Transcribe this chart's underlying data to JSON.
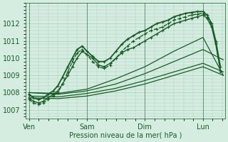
{
  "title": "",
  "xlabel": "Pression niveau de la mer( hPa )",
  "ylabel": "",
  "bg_color": "#d4ede0",
  "plot_bg_color": "#d4ede0",
  "grid_color": "#aacfbc",
  "line_color": "#1a5c28",
  "tick_color": "#1a5c28",
  "label_color": "#1a5c28",
  "ylim": [
    1006.5,
    1013.2
  ],
  "yticks": [
    1007,
    1008,
    1009,
    1010,
    1011,
    1012
  ],
  "x_labels": [
    "Ven",
    "Sam",
    "Dim",
    "Lun"
  ],
  "x_positions": [
    0,
    1,
    2,
    3
  ],
  "lines": [
    {
      "x": [
        0.0,
        0.5,
        1.0,
        1.5,
        2.0,
        2.5,
        3.0,
        3.35
      ],
      "y": [
        1007.7,
        1007.65,
        1007.8,
        1008.1,
        1008.5,
        1009.0,
        1009.5,
        1009.0
      ],
      "style": "-",
      "marker": null,
      "lw": 0.9,
      "ms": 0
    },
    {
      "x": [
        0.0,
        0.5,
        1.0,
        1.5,
        2.0,
        2.5,
        3.0,
        3.35
      ],
      "y": [
        1007.8,
        1007.75,
        1007.95,
        1008.25,
        1008.7,
        1009.2,
        1009.7,
        1009.2
      ],
      "style": "-",
      "marker": null,
      "lw": 0.9,
      "ms": 0
    },
    {
      "x": [
        0.0,
        0.5,
        1.0,
        1.5,
        2.0,
        2.5,
        3.0,
        3.35
      ],
      "y": [
        1008.0,
        1007.9,
        1008.1,
        1008.5,
        1009.1,
        1009.8,
        1010.5,
        1009.9
      ],
      "style": "-",
      "marker": null,
      "lw": 0.9,
      "ms": 0
    },
    {
      "x": [
        0.0,
        0.5,
        1.0,
        1.5,
        2.0,
        2.5,
        3.0,
        3.35
      ],
      "y": [
        1008.0,
        1007.95,
        1008.2,
        1008.8,
        1009.5,
        1010.4,
        1011.2,
        1009.0
      ],
      "style": "-",
      "marker": null,
      "lw": 0.9,
      "ms": 0
    },
    {
      "x": [
        0.0,
        0.08,
        0.17,
        0.25,
        0.33,
        0.42,
        0.5,
        0.58,
        0.67,
        0.75,
        0.83,
        0.92,
        1.0,
        1.1,
        1.2,
        1.3,
        1.4,
        1.5,
        1.6,
        1.7,
        1.8,
        1.9,
        2.0,
        2.1,
        2.2,
        2.3,
        2.4,
        2.5,
        2.6,
        2.7,
        2.8,
        2.9,
        3.0,
        3.07,
        3.15,
        3.22,
        3.3
      ],
      "y": [
        1007.7,
        1007.5,
        1007.4,
        1007.5,
        1007.7,
        1007.9,
        1008.1,
        1008.5,
        1009.0,
        1009.5,
        1010.0,
        1010.4,
        1010.2,
        1010.0,
        1009.6,
        1009.5,
        1009.7,
        1010.0,
        1010.3,
        1010.5,
        1010.6,
        1010.8,
        1011.0,
        1011.2,
        1011.4,
        1011.6,
        1011.8,
        1012.0,
        1012.1,
        1012.2,
        1012.3,
        1012.4,
        1012.5,
        1012.3,
        1011.8,
        1010.8,
        1009.3
      ],
      "style": "-",
      "marker": "+",
      "lw": 1.0,
      "ms": 3.5
    },
    {
      "x": [
        0.0,
        0.08,
        0.17,
        0.25,
        0.33,
        0.42,
        0.5,
        0.58,
        0.67,
        0.75,
        0.83,
        0.92,
        1.0,
        1.1,
        1.2,
        1.3,
        1.4,
        1.5,
        1.6,
        1.7,
        1.8,
        1.9,
        2.0,
        2.1,
        2.2,
        2.3,
        2.4,
        2.5,
        2.6,
        2.7,
        2.8,
        2.9,
        3.0,
        3.07,
        3.15,
        3.22,
        3.3
      ],
      "y": [
        1007.6,
        1007.4,
        1007.3,
        1007.4,
        1007.6,
        1007.8,
        1008.0,
        1008.5,
        1009.2,
        1009.8,
        1010.3,
        1010.5,
        1010.2,
        1009.8,
        1009.5,
        1009.4,
        1009.6,
        1010.0,
        1010.4,
        1010.7,
        1011.0,
        1011.2,
        1011.4,
        1011.6,
        1011.7,
        1011.8,
        1012.0,
        1012.2,
        1012.3,
        1012.4,
        1012.5,
        1012.55,
        1012.6,
        1012.4,
        1011.9,
        1010.9,
        1009.2
      ],
      "style": "--",
      "marker": "+",
      "lw": 1.0,
      "ms": 3.5
    },
    {
      "x": [
        0.0,
        0.08,
        0.17,
        0.25,
        0.33,
        0.42,
        0.5,
        0.58,
        0.67,
        0.75,
        0.83,
        0.92,
        1.0,
        1.1,
        1.2,
        1.3,
        1.4,
        1.5,
        1.6,
        1.7,
        1.8,
        1.9,
        2.0,
        2.1,
        2.2,
        2.3,
        2.4,
        2.5,
        2.6,
        2.7,
        2.8,
        2.9,
        3.0,
        3.07,
        3.15,
        3.22,
        3.3
      ],
      "y": [
        1007.9,
        1007.7,
        1007.6,
        1007.7,
        1007.9,
        1008.1,
        1008.4,
        1008.9,
        1009.5,
        1010.0,
        1010.5,
        1010.7,
        1010.4,
        1010.1,
        1009.8,
        1009.8,
        1010.0,
        1010.4,
        1010.8,
        1011.1,
        1011.3,
        1011.5,
        1011.6,
        1011.8,
        1012.0,
        1012.1,
        1012.2,
        1012.4,
        1012.5,
        1012.6,
        1012.65,
        1012.7,
        1012.7,
        1012.5,
        1012.0,
        1011.0,
        1009.5
      ],
      "style": "-",
      "marker": "+",
      "lw": 1.3,
      "ms": 3.5
    }
  ]
}
